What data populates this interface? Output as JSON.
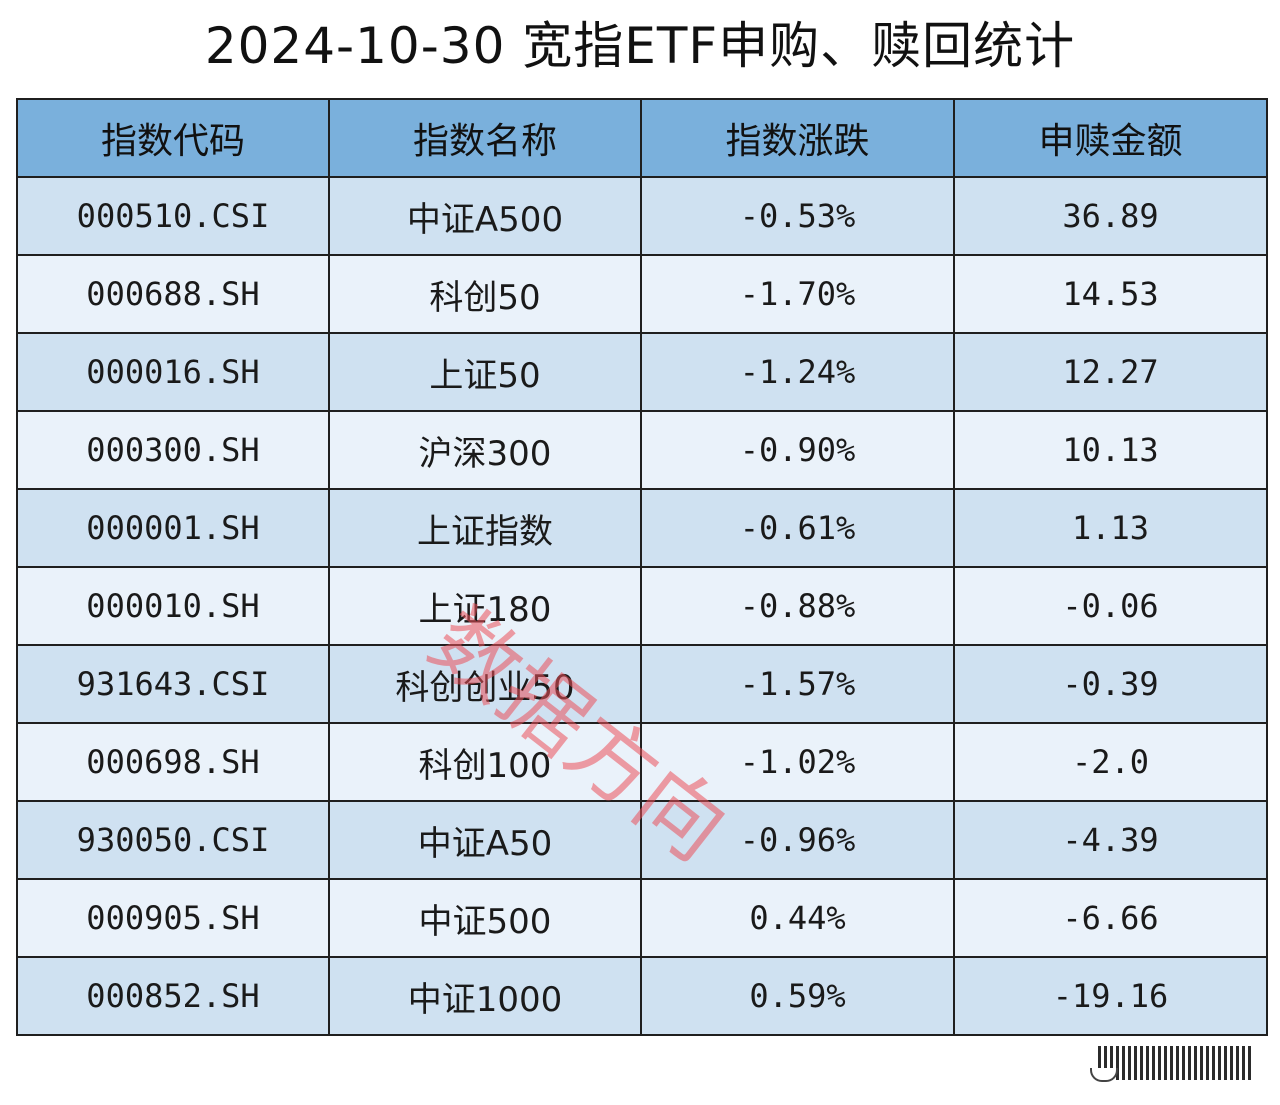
{
  "title": "2024-10-30 宽指ETF申购、赎回统计",
  "table": {
    "headers": [
      "指数代码",
      "指数名称",
      "指数涨跌",
      "申赎金额"
    ],
    "rows": [
      {
        "code": "000510.CSI",
        "name": "中证A500",
        "change": "-0.53%",
        "amount": "36.89"
      },
      {
        "code": "000688.SH",
        "name": "科创50",
        "change": "-1.70%",
        "amount": "14.53"
      },
      {
        "code": "000016.SH",
        "name": "上证50",
        "change": "-1.24%",
        "amount": "12.27"
      },
      {
        "code": "000300.SH",
        "name": "沪深300",
        "change": "-0.90%",
        "amount": "10.13"
      },
      {
        "code": "000001.SH",
        "name": "上证指数",
        "change": "-0.61%",
        "amount": "1.13"
      },
      {
        "code": "000010.SH",
        "name": "上证180",
        "change": "-0.88%",
        "amount": "-0.06"
      },
      {
        "code": "931643.CSI",
        "name": "科创创业50",
        "change": "-1.57%",
        "amount": "-0.39"
      },
      {
        "code": "000698.SH",
        "name": "科创100",
        "change": "-1.02%",
        "amount": "-2.0"
      },
      {
        "code": "930050.CSI",
        "name": "中证A50",
        "change": "-0.96%",
        "amount": "-4.39"
      },
      {
        "code": "000905.SH",
        "name": "中证500",
        "change": "0.44%",
        "amount": "-6.66"
      },
      {
        "code": "000852.SH",
        "name": "中证1000",
        "change": "0.59%",
        "amount": "-19.16"
      }
    ]
  },
  "watermark": "数据方向",
  "colors": {
    "header_bg": "#7ab0dc",
    "row_odd_bg": "#cfe1f1",
    "row_even_bg": "#eaf2fa",
    "watermark": "#eb505a"
  }
}
